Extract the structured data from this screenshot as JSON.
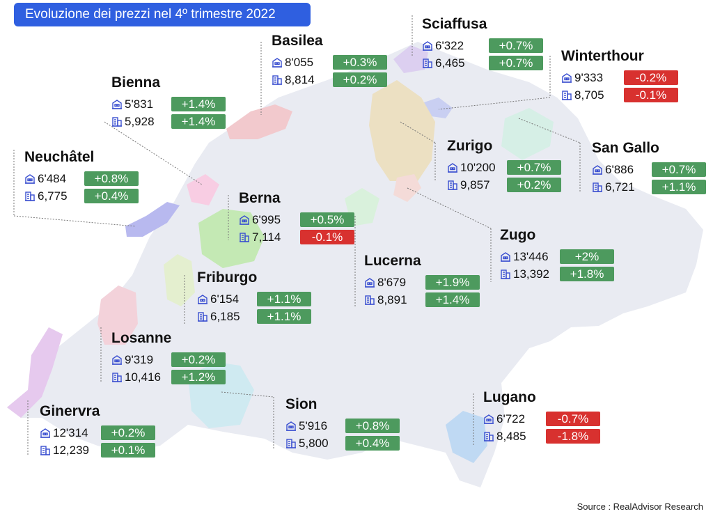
{
  "title": "Evoluzione dei prezzi nel 4º trimestre 2022",
  "source": "Source : RealAdvisor Research",
  "legend_icons": {
    "apartment": "apartment-icon",
    "house": "house-icon"
  },
  "colors": {
    "positive": "#4d9a5e",
    "negative": "#d8312f",
    "title_bg": "#2f5fe0",
    "map_base": "#e9ebf2"
  },
  "cities": [
    {
      "id": "basilea",
      "name": "Basilea",
      "apartment": "8'055",
      "apartment_change": "+0.3%",
      "house": "8,814",
      "house_change": "+0.2%"
    },
    {
      "id": "sciaffusa",
      "name": "Sciaffusa",
      "apartment": "6'322",
      "apartment_change": "+0.7%",
      "house": "6,465",
      "house_change": "+0.7%"
    },
    {
      "id": "winterthour",
      "name": "Winterthour",
      "apartment": "9'333",
      "apartment_change": "-0.2%",
      "house": "8,705",
      "house_change": "-0.1%"
    },
    {
      "id": "bienna",
      "name": "Bienna",
      "apartment": "5'831",
      "apartment_change": "+1.4%",
      "house": "5,928",
      "house_change": "+1.4%"
    },
    {
      "id": "zurigo",
      "name": "Zurigo",
      "apartment": "10'200",
      "apartment_change": "+0.7%",
      "house": "9,857",
      "house_change": "+0.2%"
    },
    {
      "id": "san-gallo",
      "name": "San Gallo",
      "apartment": "6'886",
      "apartment_change": "+0.7%",
      "house": "6,721",
      "house_change": "+1.1%"
    },
    {
      "id": "neuchatel",
      "name": "Neuchâtel",
      "apartment": "6'484",
      "apartment_change": "+0.8%",
      "house": "6,775",
      "house_change": "+0.4%"
    },
    {
      "id": "berna",
      "name": "Berna",
      "apartment": "6'995",
      "apartment_change": "+0.5%",
      "house": "7,114",
      "house_change": "-0.1%"
    },
    {
      "id": "zugo",
      "name": "Zugo",
      "apartment": "13'446",
      "apartment_change": "+2%",
      "house": "13,392",
      "house_change": "+1.8%"
    },
    {
      "id": "friburgo",
      "name": "Friburgo",
      "apartment": "6'154",
      "apartment_change": "+1.1%",
      "house": "6,185",
      "house_change": "+1.1%"
    },
    {
      "id": "lucerna",
      "name": "Lucerna",
      "apartment": "8'679",
      "apartment_change": "+1.9%",
      "house": "8,891",
      "house_change": "+1.4%"
    },
    {
      "id": "losanne",
      "name": "Losanne",
      "apartment": "9'319",
      "apartment_change": "+0.2%",
      "house": "10,416",
      "house_change": "+1.2%"
    },
    {
      "id": "ginervra",
      "name": "Ginervra",
      "apartment": "12'314",
      "apartment_change": "+0.2%",
      "house": "12,239",
      "house_change": "+0.1%"
    },
    {
      "id": "sion",
      "name": "Sion",
      "apartment": "5'916",
      "apartment_change": "+0.8%",
      "house": "5,800",
      "house_change": "+0.4%"
    },
    {
      "id": "lugano",
      "name": "Lugano",
      "apartment": "6'722",
      "apartment_change": "-0.7%",
      "house": "8,485",
      "house_change": "-1.8%"
    }
  ]
}
